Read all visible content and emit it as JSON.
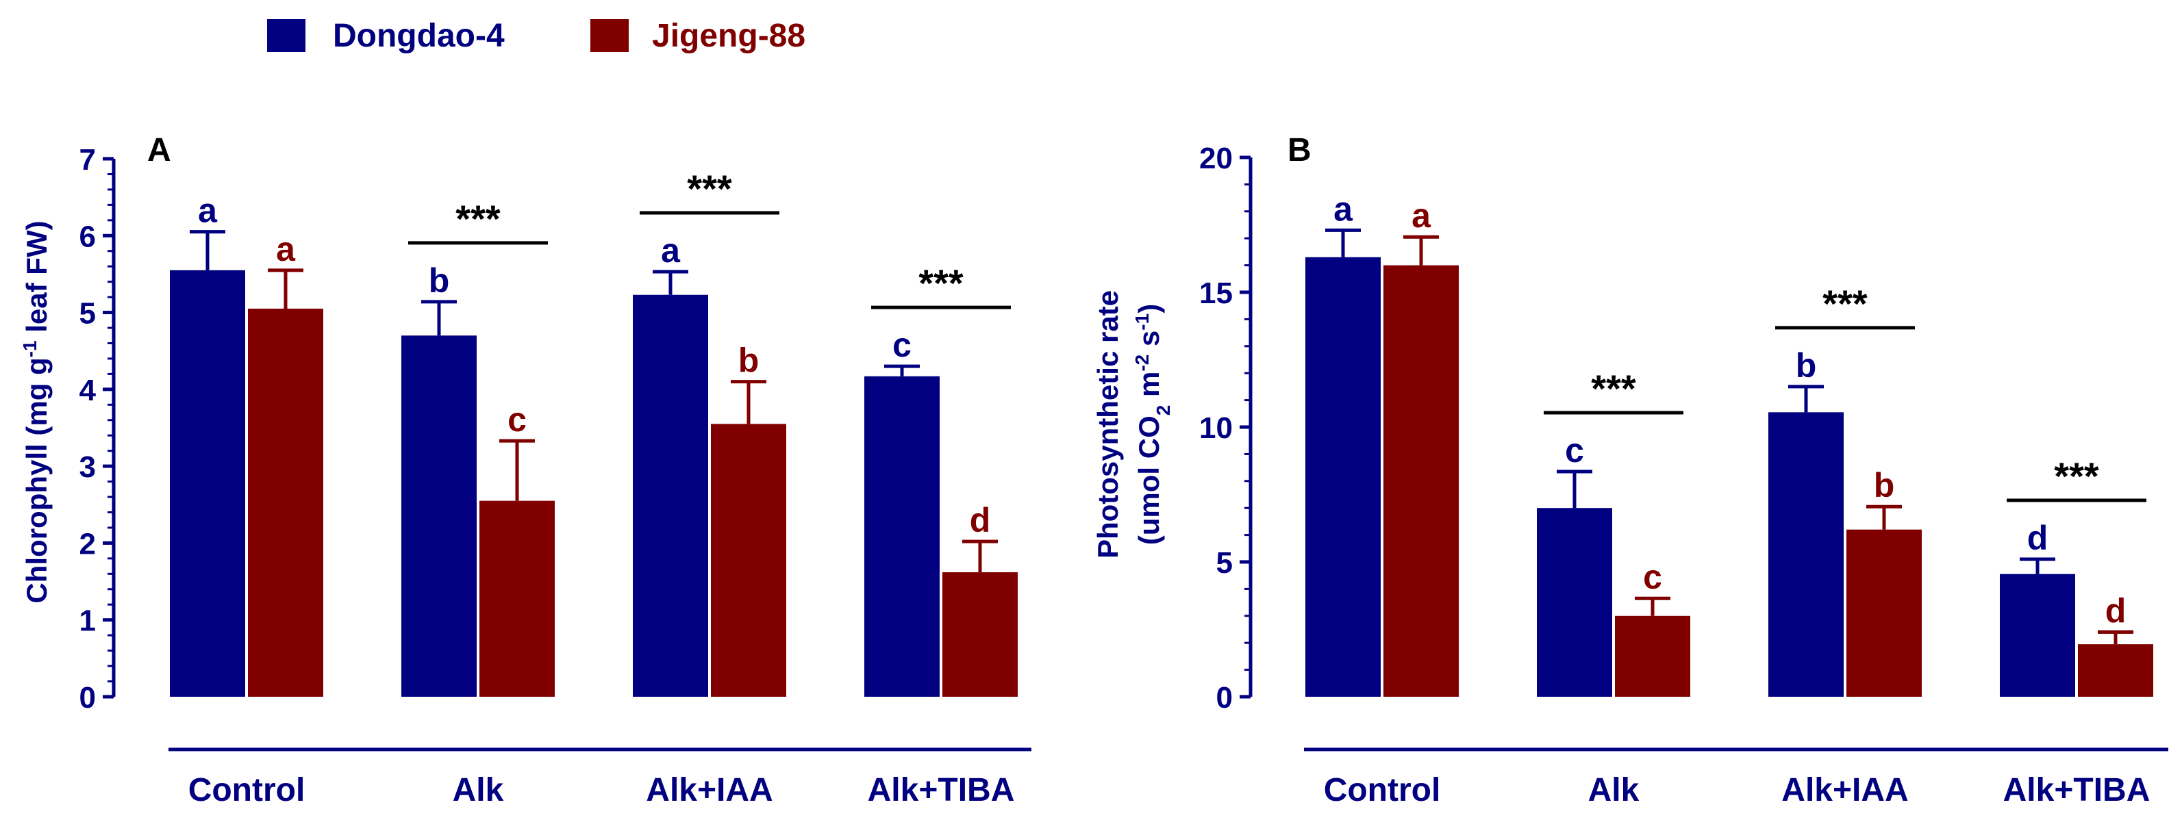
{
  "legend": {
    "items": [
      {
        "name": "Dongdao-4",
        "color": "#000080"
      },
      {
        "name": "Jigeng-88",
        "color": "#800000"
      }
    ]
  },
  "colors": {
    "axis": "#000080",
    "series1": "#000080",
    "series2": "#800000",
    "sig": "#000000"
  },
  "chart_data": [
    {
      "panel": "A",
      "type": "bar",
      "categories": [
        "Control",
        "Alk",
        "Alk+IAA",
        "Alk+TIBA"
      ],
      "ylabel": "Chlorophyll (mg g-1 leaf FW)",
      "ylabel_parts": {
        "main": "Chlorophyll (mg g",
        "sup": "-1",
        "rest": " leaf FW)"
      },
      "ylim": [
        0,
        7
      ],
      "yticks": [
        0,
        1,
        2,
        3,
        4,
        5,
        6,
        7
      ],
      "series": [
        {
          "name": "Dongdao-4",
          "values": [
            5.55,
            4.7,
            5.23,
            4.17
          ],
          "errors": [
            0.5,
            0.44,
            0.3,
            0.13
          ],
          "letters": [
            "a",
            "b",
            "a",
            "c"
          ]
        },
        {
          "name": "Jigeng-88",
          "values": [
            5.05,
            2.55,
            3.55,
            1.62
          ],
          "errors": [
            0.5,
            0.78,
            0.55,
            0.4
          ],
          "letters": [
            "a",
            "c",
            "b",
            "d"
          ]
        }
      ],
      "significance": [
        "",
        "***",
        "***",
        "***"
      ]
    },
    {
      "panel": "B",
      "type": "bar",
      "categories": [
        "Control",
        "Alk",
        "Alk+IAA",
        "Alk+TIBA"
      ],
      "ylabel": "Photosynthetic rate (umol CO2 m-2 s-1)",
      "ylabel_parts": {
        "line1": "Photosynthetic rate",
        "a": "(umol CO",
        "sub": "2",
        "b": " m",
        "sup1": "-2",
        "c": " s",
        "sup2": "-1",
        "d": ")"
      },
      "ylim": [
        0,
        20
      ],
      "yticks": [
        0,
        5,
        10,
        15,
        20
      ],
      "series": [
        {
          "name": "Dongdao-4",
          "values": [
            16.3,
            7.0,
            10.55,
            4.55
          ],
          "errors": [
            1.0,
            1.35,
            0.95,
            0.55
          ],
          "letters": [
            "a",
            "c",
            "b",
            "d"
          ]
        },
        {
          "name": "Jigeng-88",
          "values": [
            16.0,
            3.0,
            6.2,
            1.95
          ],
          "errors": [
            1.05,
            0.65,
            0.85,
            0.45
          ],
          "letters": [
            "a",
            "c",
            "b",
            "d"
          ]
        }
      ],
      "significance": [
        "",
        "***",
        "***",
        "***"
      ]
    }
  ]
}
